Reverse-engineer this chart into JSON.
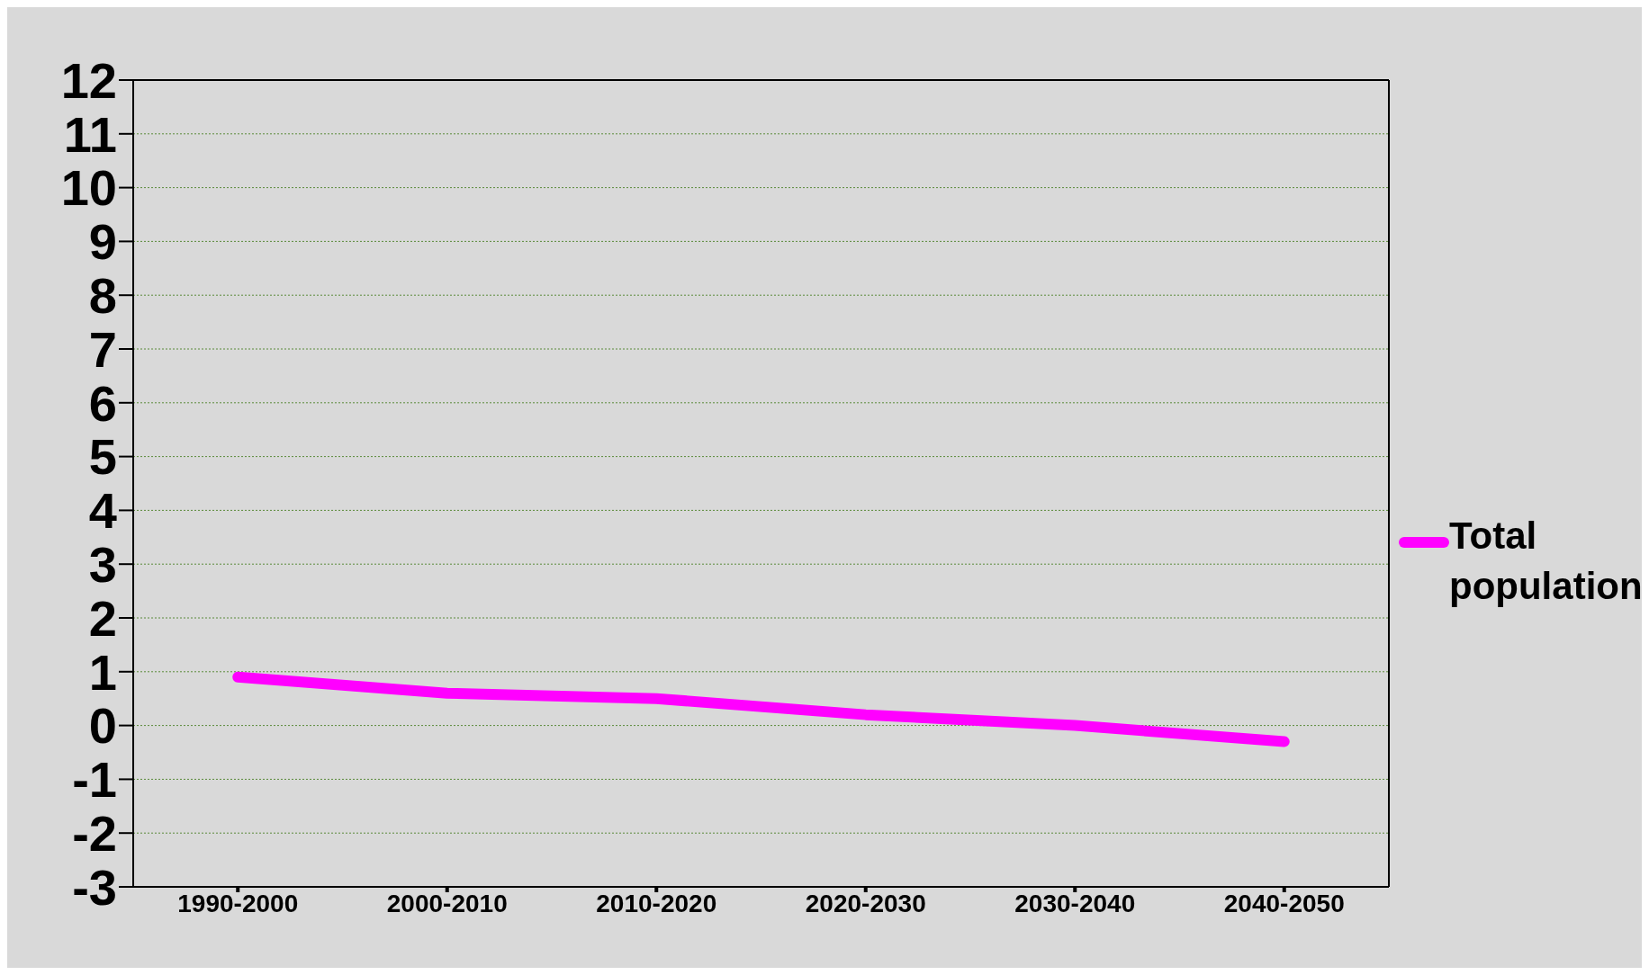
{
  "chart_data": {
    "type": "line",
    "categories": [
      "1990-2000",
      "2000-2010",
      "2010-2020",
      "2020-2030",
      "2030-2040",
      "2040-2050"
    ],
    "series": [
      {
        "name": "Total population",
        "color": "#ff00ff",
        "values": [
          0.9,
          0.6,
          0.5,
          0.2,
          0.0,
          -0.3
        ]
      }
    ],
    "ylim": [
      -3,
      12
    ],
    "yticks": [
      -3,
      -2,
      -1,
      0,
      1,
      2,
      3,
      4,
      5,
      6,
      7,
      8,
      9,
      10,
      11,
      12
    ],
    "grid": "y",
    "legend": "right",
    "marker": "none",
    "line_style": "solid"
  }
}
